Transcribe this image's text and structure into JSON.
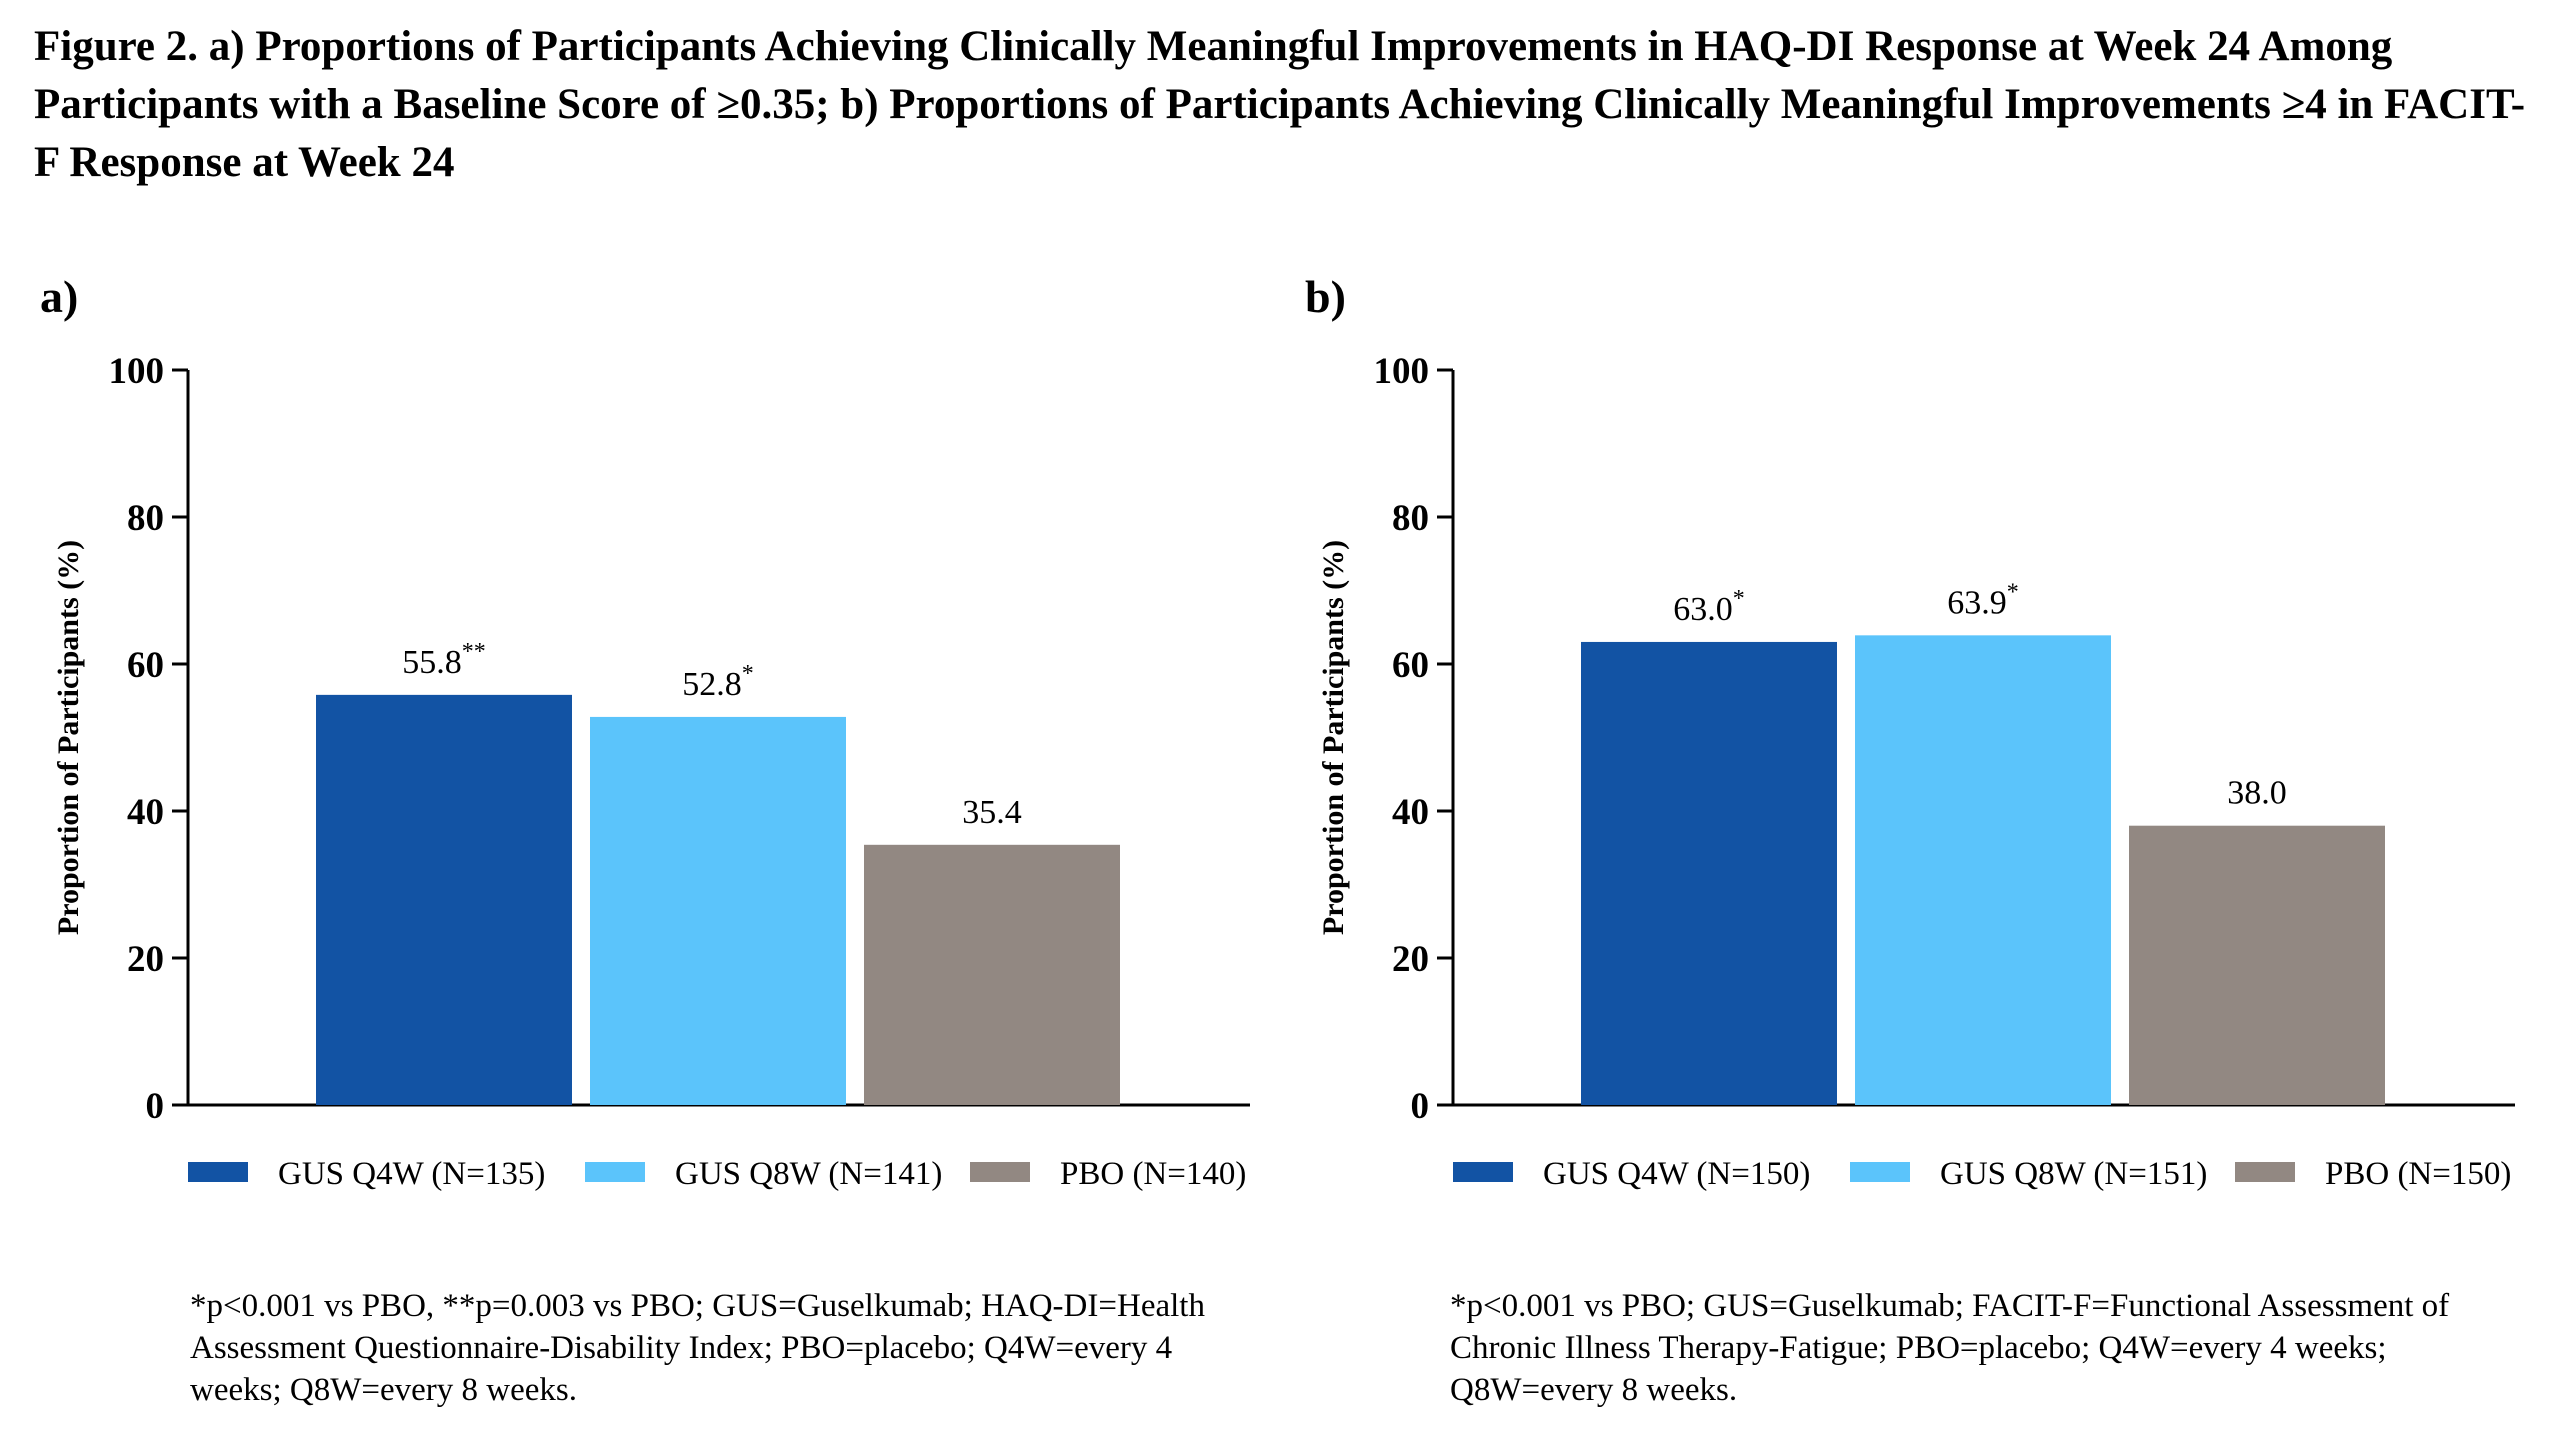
{
  "figure_title": "Figure 2. a) Proportions of Participants Achieving Clinically Meaningful Improvements in HAQ-DI Response at Week 24 Among Participants with a Baseline Score of ≥0.35; b) Proportions of Participants Achieving Clinically Meaningful Improvements ≥4 in FACIT-F Response at Week 24",
  "colors": {
    "gus_q4w": "#1253a4",
    "gus_q8w": "#5bc4fb",
    "pbo": "#928882"
  },
  "chart_data": [
    {
      "type": "bar",
      "panel_label": "a)",
      "ylabel": "Proportion of Participants (%)",
      "ylim": [
        0,
        100
      ],
      "yticks": [
        0,
        20,
        40,
        60,
        80,
        100
      ],
      "grid": false,
      "legend_position": "bottom",
      "series": [
        {
          "name": "GUS Q4W (N=135)",
          "value": 55.8,
          "label": "55.8",
          "sig": "**",
          "color_key": "gus_q4w"
        },
        {
          "name": "GUS Q8W (N=141)",
          "value": 52.8,
          "label": "52.8",
          "sig": "*",
          "color_key": "gus_q8w"
        },
        {
          "name": "PBO (N=140)",
          "value": 35.4,
          "label": "35.4",
          "sig": "",
          "color_key": "pbo"
        }
      ],
      "footnote": "*p<0.001 vs PBO, **p=0.003 vs PBO; GUS=Guselkumab; HAQ-DI=Health Assessment Questionnaire-Disability Index; PBO=placebo; Q4W=every 4 weeks; Q8W=every 8 weeks."
    },
    {
      "type": "bar",
      "panel_label": "b)",
      "ylabel": "Proportion of Participants (%)",
      "ylim": [
        0,
        100
      ],
      "yticks": [
        0,
        20,
        40,
        60,
        80,
        100
      ],
      "grid": false,
      "legend_position": "bottom",
      "series": [
        {
          "name": "GUS Q4W (N=150)",
          "value": 63.0,
          "label": "63.0",
          "sig": "*",
          "color_key": "gus_q4w"
        },
        {
          "name": "GUS Q8W (N=151)",
          "value": 63.9,
          "label": "63.9",
          "sig": "*",
          "color_key": "gus_q8w"
        },
        {
          "name": "PBO (N=150)",
          "value": 38.0,
          "label": "38.0",
          "sig": "",
          "color_key": "pbo"
        }
      ],
      "footnote": "*p<0.001 vs PBO; GUS=Guselkumab; FACIT-F=Functional Assessment of Chronic Illness Therapy-Fatigue; PBO=placebo; Q4W=every 4 weeks; Q8W=every 8 weeks."
    }
  ]
}
